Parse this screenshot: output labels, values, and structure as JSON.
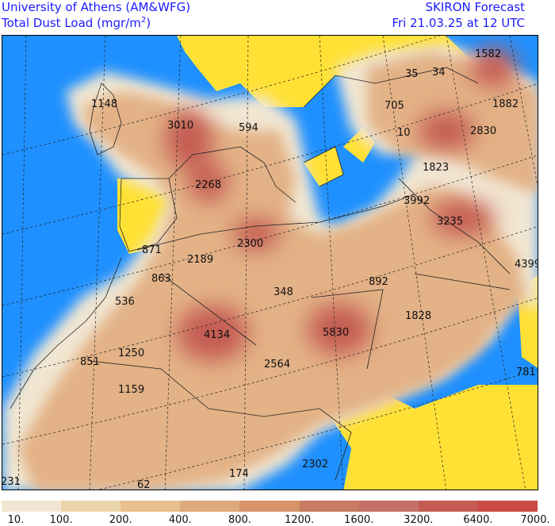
{
  "header": {
    "institution": "University of Athens (AM&WFG)",
    "product": "Total Dust Load (mgr/m",
    "product_sup": "2",
    "product_close": ")",
    "model": "SKIRON Forecast",
    "valid_time": "Fri 21.03.25 at 12 UTC"
  },
  "map_values": [
    "1582",
    "35",
    "34",
    "1882",
    "1148",
    "705",
    "3010",
    "594",
    "2830",
    "10",
    "1823",
    "2268",
    "3992",
    "3235",
    "2300",
    "871",
    "2189",
    "4399",
    "863",
    "892",
    "348",
    "536",
    "1828",
    "4134",
    "5830",
    "1250",
    "851",
    "2564",
    "781",
    "1159",
    "2302",
    "174",
    "231",
    "62"
  ],
  "legend": {
    "levels": [
      "10.",
      "100.",
      "200.",
      "400.",
      "800.",
      "1200.",
      "1600.",
      "3200.",
      "6400.",
      "7000."
    ],
    "colors": [
      "#f1e6d2",
      "#ecd5ab",
      "#e7c08d",
      "#dcaa7c",
      "#d69468",
      "#c87a63",
      "#c6706a",
      "#c45c52",
      "#c94a46"
    ]
  },
  "colors": {
    "sea": "#1e90ff",
    "land_no_dust": "#ffe135",
    "dust_light": "#f1e6d2",
    "dust_medium": "#e3b286",
    "dust_heavy": "#c45c52",
    "header_text": "#1a1aff"
  }
}
